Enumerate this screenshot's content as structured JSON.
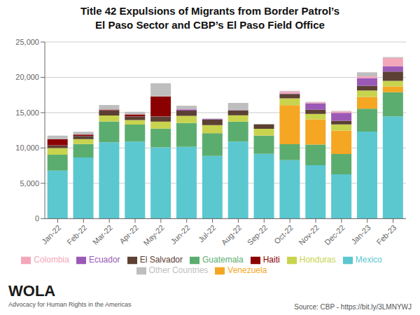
{
  "chart_data": {
    "type": "bar",
    "stacked": true,
    "title": "Title 42 Expulsions of Migrants from Border Patrol’s\nEl Paso Sector and CBP’s El Paso Field Office",
    "categories": [
      "Jan-22",
      "Feb-22",
      "Mar-22",
      "Apr-22",
      "May-22",
      "Jun-22",
      "Jul-22",
      "Aug-22",
      "Sep-22",
      "Oct-22",
      "Nov-22",
      "Dec-22",
      "Jan-23",
      "Feb-23"
    ],
    "series": [
      {
        "name": "Mexico",
        "color": "#5BC8D0",
        "values": [
          6803,
          8655,
          10820,
          10918,
          10079,
          10175,
          8874,
          10897,
          9182,
          8279,
          7565,
          6279,
          12325,
          14478
        ]
      },
      {
        "name": "Guatemala",
        "color": "#5BAD6F",
        "values": [
          2247,
          1900,
          2942,
          2401,
          2671,
          3363,
          3229,
          2816,
          2567,
          2246,
          2925,
          2876,
          3232,
          3408
        ]
      },
      {
        "name": "Venezuela",
        "color": "#F5A623",
        "values": [
          1,
          1,
          1,
          0,
          0,
          2,
          6,
          8,
          16,
          5525,
          3571,
          3314,
          1655,
          818
        ]
      },
      {
        "name": "Honduras",
        "color": "#C8D44E",
        "values": [
          931,
          689,
          823,
          624,
          989,
          1010,
          1131,
          898,
          960,
          977,
          749,
          861,
          939,
          807
        ]
      },
      {
        "name": "El Salvador",
        "color": "#5C4033",
        "values": [
          388,
          461,
          720,
          496,
          702,
          751,
          796,
          691,
          630,
          605,
          599,
          531,
          661,
          1309
        ]
      },
      {
        "name": "Ecuador",
        "color": "#9B59B6",
        "values": [
          10,
          7,
          23,
          23,
          33,
          168,
          65,
          53,
          6,
          94,
          911,
          1106,
          1090,
          750
        ]
      },
      {
        "name": "Haiti",
        "color": "#8B0000",
        "values": [
          852,
          178,
          111,
          290,
          2818,
          1,
          0,
          0,
          2,
          0,
          0,
          0,
          0,
          2
        ]
      },
      {
        "name": "Colombia",
        "color": "#F4A7B9",
        "values": [
          3,
          1,
          5,
          5,
          3,
          9,
          8,
          7,
          4,
          254,
          141,
          193,
          235,
          1178
        ]
      },
      {
        "name": "Other Countries",
        "color": "#BEBEBE",
        "values": [
          513,
          391,
          628,
          370,
          1853,
          509,
          70,
          1016,
          22,
          112,
          78,
          70,
          587,
          130
        ]
      }
    ],
    "ylim": [
      0,
      25000
    ],
    "yticks": [
      0,
      {
        "value": 5000,
        "label": "5,000"
      },
      {
        "value": 10000,
        "label": "10,000"
      },
      {
        "value": 15000,
        "label": "15,000"
      },
      {
        "value": 20000,
        "label": "20,000"
      },
      {
        "value": 25000,
        "label": "25,000"
      }
    ],
    "grid": true,
    "legend": "bottom",
    "annotations": [
      "WOLA",
      "Advocacy for Human Rights in the Americas",
      "Source: CBP - https://bit.ly/3LMNYWJ"
    ]
  }
}
